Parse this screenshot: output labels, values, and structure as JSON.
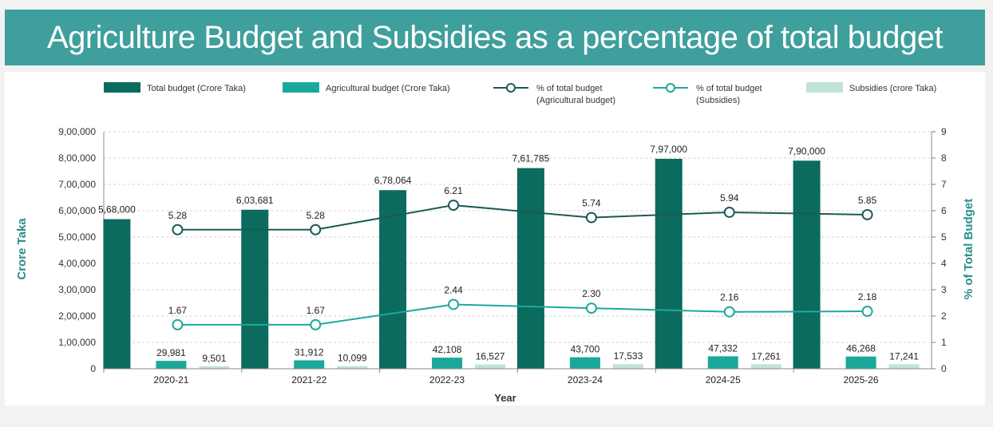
{
  "colors": {
    "title_bg": "#3f9f9c",
    "total_budget": "#0b6b5e",
    "agricultural_budget": "#1aa89a",
    "subsidies": "#c2e3da",
    "line_agri": "#1b5b57",
    "line_subsidies": "#1fa99b",
    "axis_title": "#2a8f89"
  },
  "chart_data": {
    "type": "bar",
    "title": "Agriculture Budget and Subsidies as a percentage of total budget",
    "xlabel": "Year",
    "ylabel": "Crore Taka",
    "y2label": "% of Total Budget",
    "ylim": [
      0,
      900000
    ],
    "y2lim": [
      0,
      9
    ],
    "legend_placement": "top",
    "grid": true,
    "categories": [
      "2020-21",
      "2021-22",
      "2022-23",
      "2023-24",
      "2024-25",
      "2025-26"
    ],
    "y_tick_labels": [
      "0",
      "1,00,000",
      "2,00,000",
      "3,00,000",
      "4,00,000",
      "5,00,000",
      "6,00,000",
      "7,00,000",
      "8,00,000",
      "9,00,000"
    ],
    "y2_tick_labels": [
      "0",
      "1",
      "2",
      "3",
      "4",
      "5",
      "6",
      "7",
      "8",
      "9"
    ],
    "bar_series": [
      {
        "key": "total_budget",
        "name": "Total budget (Crore Taka)",
        "values": [
          568000,
          603681,
          678064,
          761785,
          797000,
          790000
        ],
        "labels": [
          "5,68,000",
          "6,03,681",
          "6,78,064",
          "7,61,785",
          "7,97,000",
          "7,90,000"
        ]
      },
      {
        "key": "agricultural_budget",
        "name": "Agricultural budget (Crore Taka)",
        "values": [
          29981,
          31912,
          42108,
          43700,
          47332,
          46268
        ],
        "labels": [
          "29,981",
          "31,912",
          "42,108",
          "43,700",
          "47,332",
          "46,268"
        ]
      },
      {
        "key": "subsidies",
        "name": "Subsidies (crore Taka)",
        "values": [
          9501,
          10099,
          16527,
          17533,
          17261,
          17241
        ],
        "labels": [
          "9,501",
          "10,099",
          "16,527",
          "17,533",
          "17,261",
          "17,241"
        ]
      }
    ],
    "line_series": [
      {
        "key": "line_agri",
        "name_line1": "% of total budget",
        "name_line2": "(Agricultural budget)",
        "values": [
          5.28,
          5.28,
          6.21,
          5.74,
          5.94,
          5.85
        ],
        "labels": [
          "5.28",
          "5.28",
          "6.21",
          "5.74",
          "5.94",
          "5.85"
        ]
      },
      {
        "key": "line_subsidies",
        "name_line1": "% of total budget",
        "name_line2": "(Subsidies)",
        "values": [
          1.67,
          1.67,
          2.44,
          2.3,
          2.16,
          2.18
        ],
        "labels": [
          "1.67",
          "1.67",
          "2.44",
          "2.30",
          "2.16",
          "2.18"
        ]
      }
    ]
  }
}
